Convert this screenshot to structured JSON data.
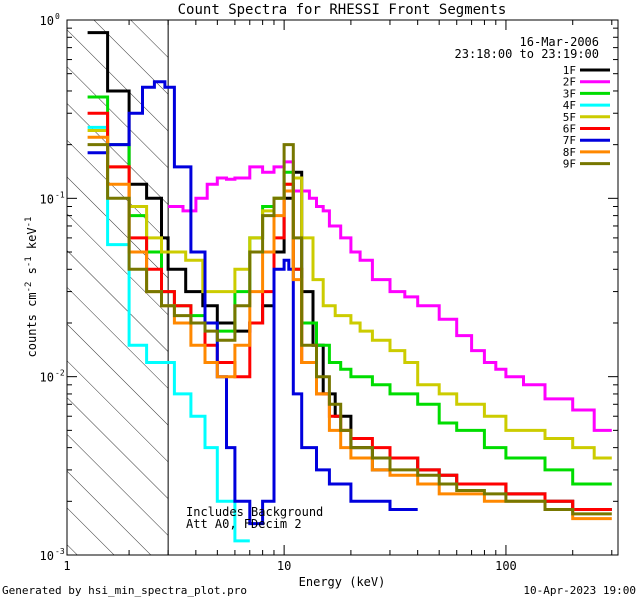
{
  "chart_data": {
    "type": "line",
    "title": "Count Spectra for RHESSI Front Segments",
    "xlabel": "Energy (keV)",
    "ylabel_parts": [
      "counts cm",
      "-2",
      " s",
      "-1",
      " keV",
      "-1"
    ],
    "xscale": "log",
    "yscale": "log",
    "xlim": [
      1.05,
      320
    ],
    "ylim": [
      0.001,
      1.0
    ],
    "x_ticks": [
      {
        "value": 10,
        "label": "10"
      },
      {
        "value": 100,
        "label": "100"
      }
    ],
    "y_ticks": [
      {
        "value": 1,
        "base": "10",
        "exp": "0"
      },
      {
        "value": 0.1,
        "base": "10",
        "exp": "-1"
      },
      {
        "value": 0.01,
        "base": "10",
        "exp": "-2"
      },
      {
        "value": 0.001,
        "base": "10",
        "exp": "-3"
      }
    ],
    "x_corner_label": "1",
    "attenuator_shade_max_keV": 3,
    "date": "16-Mar-2006",
    "time_range": "23:18:00 to 23:19:00",
    "annotations": [
      "Includes Background",
      "Att A0, FDecim 2"
    ],
    "series": [
      {
        "name": "1F",
        "color": "#000000",
        "edges": [
          1.3,
          1.6,
          2.0,
          2.4,
          2.8,
          3.0,
          3.6,
          4.3,
          5.0,
          6.0,
          7.0,
          8.0,
          9.0,
          10.0,
          11.0,
          12.0,
          13.5,
          15.0,
          17.0,
          20.0,
          25.0,
          30.0,
          40.0,
          50.0,
          60.0,
          80.0,
          100.0,
          150.0,
          200.0,
          300.0
        ],
        "values": [
          0.85,
          0.4,
          0.12,
          0.1,
          0.06,
          0.04,
          0.03,
          0.025,
          0.02,
          0.018,
          0.02,
          0.025,
          0.05,
          0.1,
          0.14,
          0.03,
          0.015,
          0.008,
          0.006,
          0.004,
          0.003,
          0.0035,
          0.003,
          0.0028,
          0.0025,
          0.0025,
          0.0022,
          0.002,
          0.0018
        ]
      },
      {
        "name": "2F",
        "color": "#ff00ff",
        "edges": [
          3.0,
          3.5,
          4.0,
          4.5,
          5.0,
          5.5,
          6.0,
          7.0,
          8.0,
          9.0,
          10.0,
          11.0,
          12.0,
          13.0,
          14.0,
          15.0,
          16.0,
          18.0,
          20.0,
          22.0,
          25.0,
          30.0,
          35.0,
          40.0,
          50.0,
          60.0,
          70.0,
          80.0,
          90.0,
          100.0,
          120.0,
          150.0,
          200.0,
          250.0,
          300.0
        ],
        "values": [
          0.09,
          0.085,
          0.1,
          0.12,
          0.13,
          0.128,
          0.13,
          0.15,
          0.14,
          0.15,
          0.16,
          0.11,
          0.11,
          0.1,
          0.09,
          0.085,
          0.07,
          0.06,
          0.05,
          0.045,
          0.035,
          0.03,
          0.028,
          0.025,
          0.021,
          0.017,
          0.014,
          0.012,
          0.011,
          0.01,
          0.009,
          0.0075,
          0.0065,
          0.005
        ]
      },
      {
        "name": "3F",
        "color": "#00dd00",
        "edges": [
          1.3,
          1.6,
          2.0,
          2.4,
          2.8,
          3.2,
          3.8,
          4.4,
          5.0,
          6.0,
          7.0,
          8.0,
          9.0,
          10.0,
          11.0,
          12.0,
          14.0,
          16.0,
          18.0,
          20.0,
          25.0,
          30.0,
          40.0,
          50.0,
          60.0,
          80.0,
          100.0,
          150.0,
          200.0,
          300.0
        ],
        "values": [
          0.37,
          0.2,
          0.08,
          0.05,
          0.03,
          0.025,
          0.022,
          0.02,
          0.018,
          0.03,
          0.06,
          0.09,
          0.1,
          0.14,
          0.04,
          0.02,
          0.015,
          0.012,
          0.011,
          0.01,
          0.009,
          0.008,
          0.007,
          0.0055,
          0.005,
          0.004,
          0.0035,
          0.003,
          0.0025
        ]
      },
      {
        "name": "4F",
        "color": "#00ffff",
        "edges": [
          1.3,
          1.6,
          2.0,
          2.4,
          2.8,
          3.2,
          3.8,
          4.4,
          5.0,
          6.0,
          7.0
        ],
        "values": [
          0.25,
          0.055,
          0.015,
          0.012,
          0.012,
          0.008,
          0.006,
          0.004,
          0.002,
          0.0012
        ]
      },
      {
        "name": "5F",
        "color": "#cccc00",
        "edges": [
          1.3,
          1.6,
          2.0,
          2.4,
          2.8,
          3.0,
          3.6,
          4.3,
          5.0,
          6.0,
          7.0,
          8.0,
          9.0,
          10.0,
          11.0,
          12.0,
          13.5,
          15.0,
          17.0,
          20.0,
          22.0,
          25.0,
          30.0,
          35.0,
          40.0,
          50.0,
          60.0,
          80.0,
          100.0,
          150.0,
          200.0,
          250.0,
          300.0
        ],
        "values": [
          0.24,
          0.15,
          0.09,
          0.06,
          0.05,
          0.05,
          0.045,
          0.03,
          0.03,
          0.04,
          0.06,
          0.085,
          0.1,
          0.12,
          0.13,
          0.06,
          0.035,
          0.025,
          0.022,
          0.02,
          0.018,
          0.016,
          0.014,
          0.012,
          0.009,
          0.008,
          0.007,
          0.006,
          0.005,
          0.0045,
          0.004,
          0.0035
        ]
      },
      {
        "name": "6F",
        "color": "#ff0000",
        "edges": [
          1.3,
          1.6,
          2.0,
          2.4,
          2.8,
          3.2,
          3.8,
          4.4,
          5.0,
          6.0,
          7.0,
          8.0,
          9.0,
          10.0,
          11.0,
          12.0,
          14.0,
          16.0,
          18.0,
          20.0,
          25.0,
          30.0,
          40.0,
          50.0,
          60.0,
          80.0,
          100.0,
          150.0,
          200.0,
          300.0
        ],
        "values": [
          0.3,
          0.15,
          0.06,
          0.04,
          0.03,
          0.025,
          0.02,
          0.015,
          0.012,
          0.01,
          0.02,
          0.03,
          0.06,
          0.12,
          0.04,
          0.012,
          0.008,
          0.006,
          0.005,
          0.0045,
          0.004,
          0.0035,
          0.003,
          0.0028,
          0.0025,
          0.0025,
          0.0022,
          0.002,
          0.0018
        ]
      },
      {
        "name": "7F",
        "color": "#0000dd",
        "edges": [
          1.3,
          1.6,
          2.0,
          2.3,
          2.6,
          2.9,
          3.2,
          3.8,
          4.4,
          5.0,
          5.5,
          6.0,
          7.0,
          8.0,
          9.0,
          10.0,
          10.5,
          11.0,
          12.0,
          14.0,
          16.0,
          20.0,
          25.0,
          30.0,
          40.0
        ],
        "values": [
          0.18,
          0.2,
          0.3,
          0.42,
          0.45,
          0.42,
          0.15,
          0.05,
          0.02,
          0.01,
          0.004,
          0.002,
          0.0015,
          0.002,
          0.04,
          0.045,
          0.04,
          0.008,
          0.004,
          0.003,
          0.0025,
          0.002,
          0.002,
          0.0018
        ]
      },
      {
        "name": "8F",
        "color": "#ff8800",
        "edges": [
          1.3,
          1.6,
          2.0,
          2.4,
          2.8,
          3.2,
          3.8,
          4.4,
          5.0,
          6.0,
          7.0,
          8.0,
          9.0,
          10.0,
          11.0,
          12.0,
          14.0,
          16.0,
          18.0,
          20.0,
          25.0,
          30.0,
          40.0,
          50.0,
          60.0,
          80.0,
          100.0,
          150.0,
          200.0,
          300.0
        ],
        "values": [
          0.22,
          0.12,
          0.05,
          0.03,
          0.025,
          0.02,
          0.015,
          0.012,
          0.01,
          0.015,
          0.03,
          0.05,
          0.08,
          0.11,
          0.035,
          0.012,
          0.008,
          0.005,
          0.004,
          0.0035,
          0.003,
          0.0028,
          0.0025,
          0.0022,
          0.0022,
          0.002,
          0.002,
          0.0018,
          0.0016
        ]
      },
      {
        "name": "9F",
        "color": "#777700",
        "edges": [
          1.3,
          1.6,
          2.0,
          2.4,
          2.8,
          3.2,
          3.8,
          4.4,
          5.0,
          6.0,
          7.0,
          8.0,
          9.0,
          10.0,
          11.0,
          12.0,
          14.0,
          16.0,
          18.0,
          20.0,
          25.0,
          30.0,
          40.0,
          50.0,
          60.0,
          80.0,
          100.0,
          150.0,
          200.0,
          300.0
        ],
        "values": [
          0.2,
          0.1,
          0.04,
          0.03,
          0.025,
          0.022,
          0.02,
          0.018,
          0.016,
          0.025,
          0.05,
          0.08,
          0.1,
          0.2,
          0.06,
          0.015,
          0.01,
          0.007,
          0.005,
          0.004,
          0.0035,
          0.003,
          0.0028,
          0.0025,
          0.0023,
          0.0022,
          0.002,
          0.0018,
          0.0017
        ]
      }
    ]
  },
  "footer": {
    "generated_by": "Generated by hsi_min_spectra_plot.pro",
    "timestamp": "10-Apr-2023 19:00"
  }
}
